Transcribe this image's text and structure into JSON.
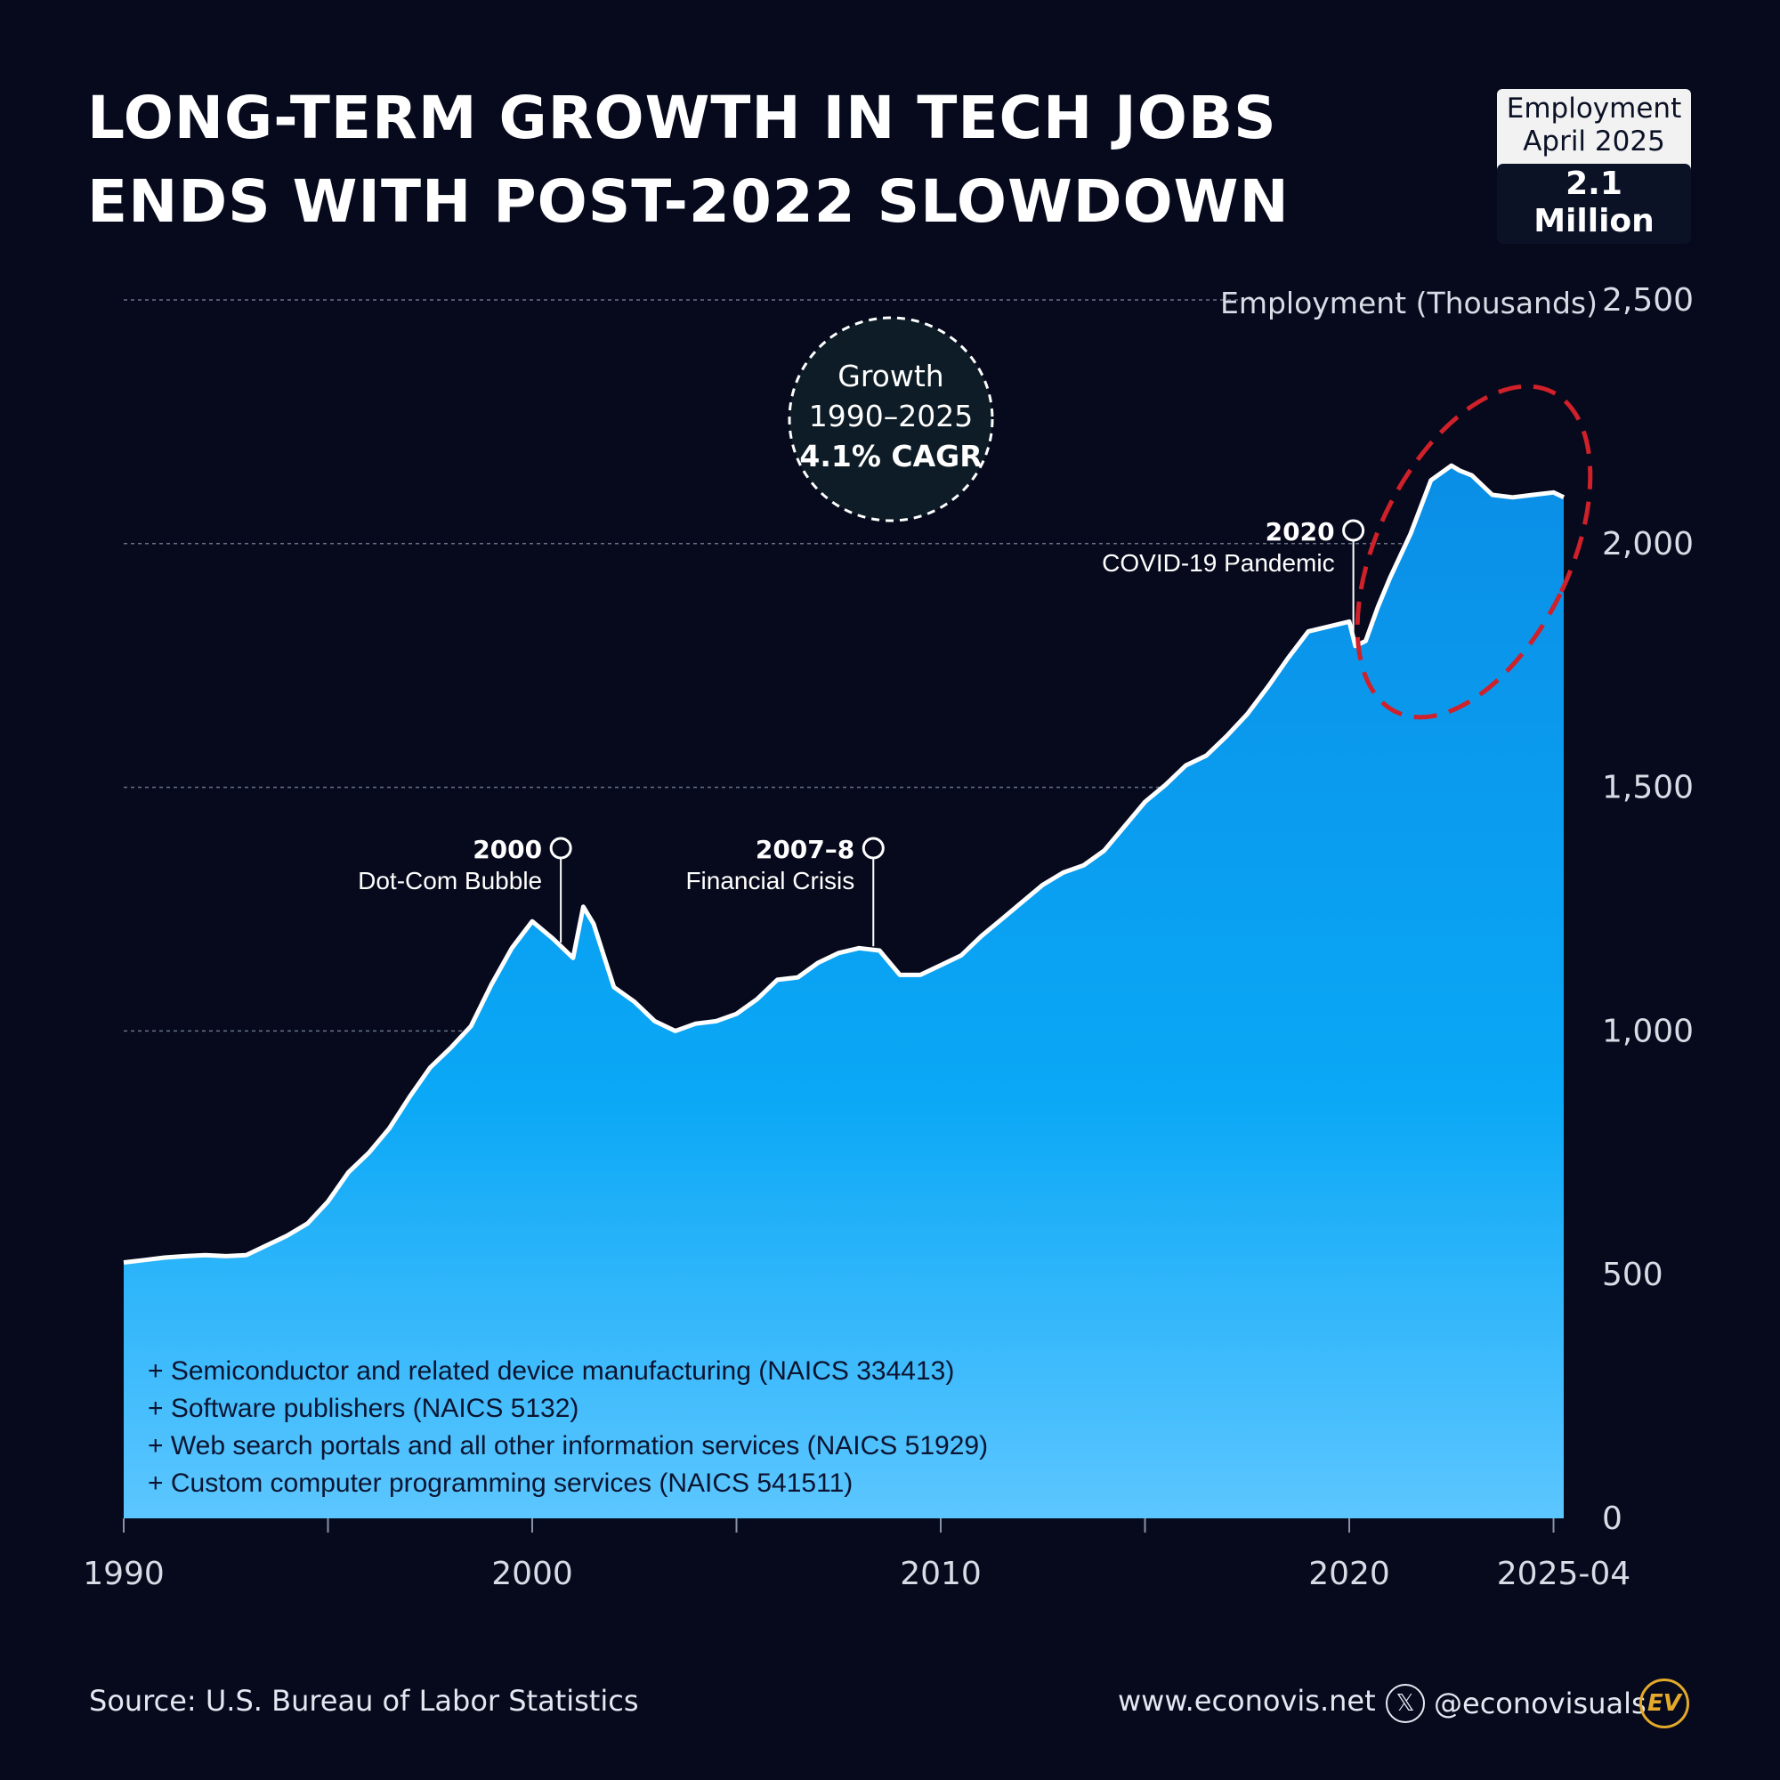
{
  "title": {
    "line1": "LONG-TERM GROWTH IN TECH JOBS",
    "line2": "ENDS WITH POST-2022 SLOWDOWN"
  },
  "badge": {
    "line1": "Employment",
    "line2": "April 2025",
    "value": "2.1 Million"
  },
  "growth_callout": {
    "line1": "Growth",
    "line2": "1990–2025",
    "line3": "4.1% CAGR"
  },
  "legend_notes": [
    "+ Semiconductor and related device manufacturing (NAICS  334413)",
    "+ Software publishers (NAICS 5132)",
    "+ Web search portals and all other information services (NAICS 51929)",
    "+ Custom computer programming services (NAICS 541511)"
  ],
  "footer": {
    "source": "Source: U.S. Bureau of Labor Statistics",
    "website": "www.econovis.net",
    "handle": "@econovisuals",
    "logo_text": "EV"
  },
  "colors": {
    "background": "#060a1c",
    "area_top": "#0a8ee6",
    "area_bottom": "#5cc6ff",
    "line": "#ffffff",
    "highlight": "#d0202a"
  },
  "chart_data": {
    "type": "area",
    "ylabel": "Employment (Thousands)",
    "ylim": [
      0,
      2500
    ],
    "yticks": [
      0,
      500,
      1000,
      1500,
      2000,
      2500
    ],
    "ytick_labels": [
      "0",
      "500",
      "1,000",
      "1,500",
      "2,000",
      "2,500"
    ],
    "xlim": [
      1990,
      2025.25
    ],
    "xticks": [
      1990,
      2000,
      2010,
      2020,
      2025.25
    ],
    "xtick_labels": [
      "1990",
      "2000",
      "2010",
      "2020",
      "2025-04"
    ],
    "grid": true,
    "x": [
      1990,
      1990.5,
      1991,
      1991.5,
      1992,
      1992.5,
      1993,
      1993.5,
      1994,
      1994.5,
      1995,
      1995.5,
      1996,
      1996.5,
      1997,
      1997.5,
      1998,
      1998.5,
      1999,
      1999.5,
      2000,
      2000.5,
      2001,
      2001.25,
      2001.5,
      2002,
      2002.5,
      2003,
      2003.5,
      2004,
      2004.5,
      2005,
      2005.5,
      2006,
      2006.5,
      2007,
      2007.5,
      2008,
      2008.5,
      2009,
      2009.5,
      2010,
      2010.5,
      2011,
      2011.5,
      2012,
      2012.5,
      2013,
      2013.5,
      2014,
      2014.5,
      2015,
      2015.5,
      2016,
      2016.5,
      2017,
      2017.5,
      2018,
      2018.5,
      2019,
      2019.5,
      2020,
      2020.15,
      2020.4,
      2020.7,
      2021,
      2021.5,
      2022,
      2022.5,
      2022.7,
      2023,
      2023.5,
      2024,
      2024.5,
      2025,
      2025.25
    ],
    "values": [
      525,
      530,
      535,
      538,
      540,
      538,
      540,
      560,
      580,
      605,
      650,
      710,
      750,
      800,
      865,
      925,
      965,
      1010,
      1095,
      1170,
      1225,
      1190,
      1150,
      1255,
      1220,
      1090,
      1060,
      1020,
      1000,
      1015,
      1020,
      1035,
      1065,
      1105,
      1110,
      1140,
      1160,
      1170,
      1165,
      1115,
      1115,
      1135,
      1155,
      1195,
      1230,
      1265,
      1300,
      1325,
      1340,
      1370,
      1420,
      1470,
      1505,
      1545,
      1565,
      1605,
      1650,
      1705,
      1765,
      1820,
      1830,
      1840,
      1790,
      1800,
      1870,
      1930,
      2020,
      2130,
      2160,
      2150,
      2140,
      2100,
      2095,
      2100,
      2105,
      2095
    ],
    "annotations": [
      {
        "year": "2000",
        "label": "Dot-Com Bubble",
        "x": 2000.7
      },
      {
        "year": "2007–8",
        "label": "Financial Crisis",
        "x": 2008.35
      },
      {
        "year": "2020",
        "label": "COVID-19 Pandemic",
        "x": 2020.1
      }
    ]
  }
}
